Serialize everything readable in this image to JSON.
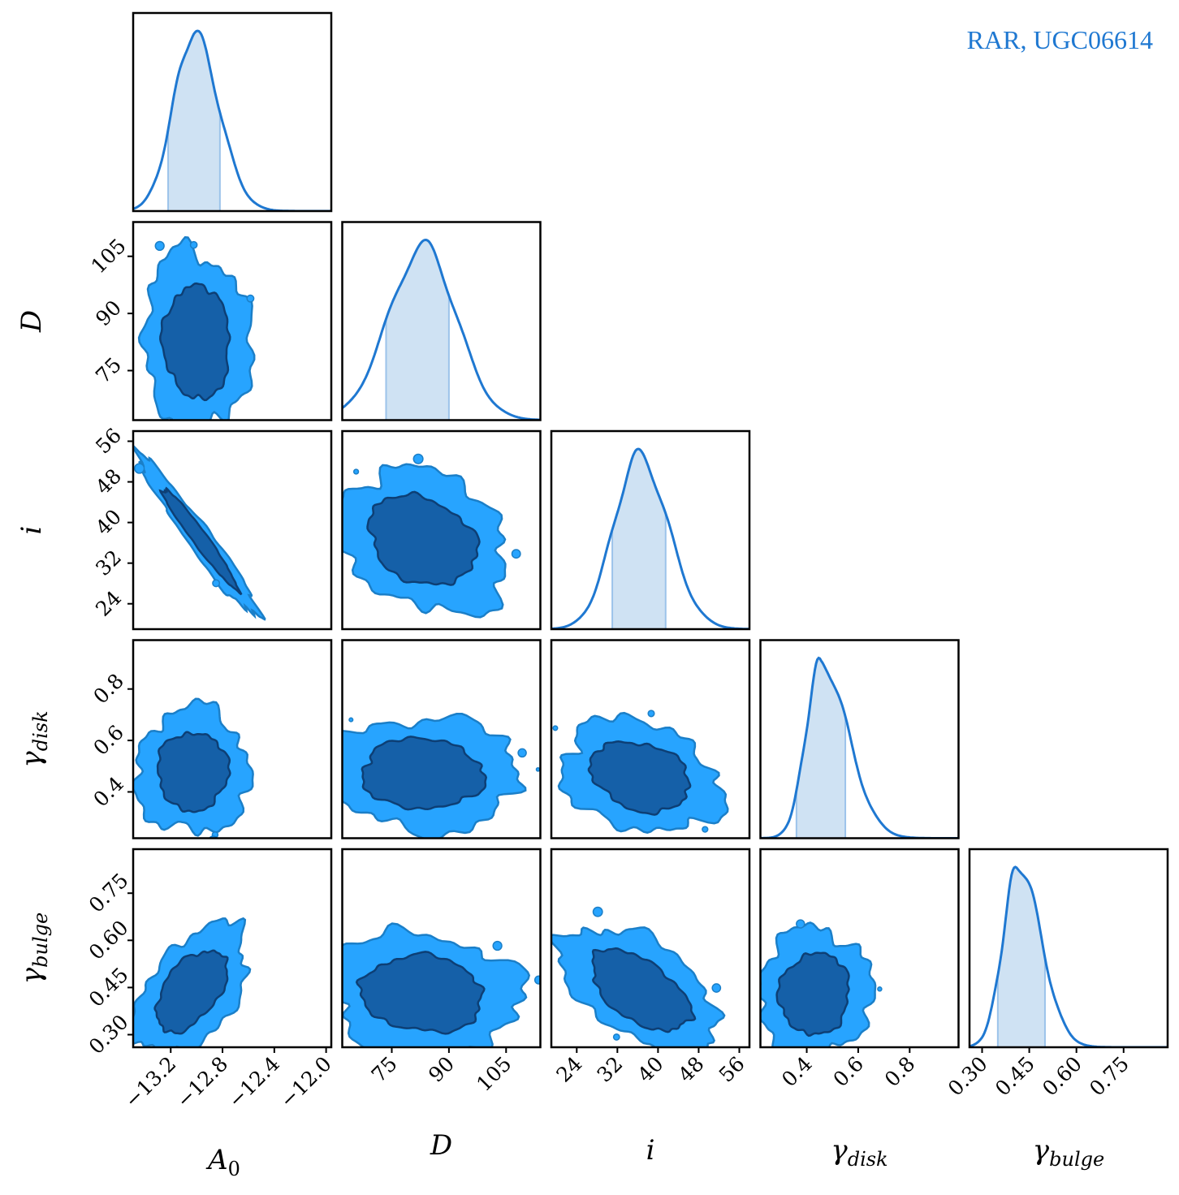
{
  "colors": {
    "line": "#1f78d1",
    "band_fill": "#cfe2f3",
    "band_edge": "#9cc3ea",
    "contour_outer_fill": "#27a4ff",
    "contour_outer_edge": "#1b7fc8",
    "contour_inner_fill": "#1560a8",
    "contour_inner_edge": "#0d3f75",
    "frame": "#000000"
  },
  "chart_data": {
    "type": "corner",
    "legend": "RAR, UGC06614",
    "parameters": [
      {
        "name": "A0",
        "label": "A0",
        "label_main": "A",
        "label_sub": "0",
        "label_sub_style": "upright",
        "range": [
          -13.49,
          -11.96
        ],
        "ticks": [
          -13.2,
          -12.8,
          -12.4,
          -12.0
        ],
        "tick_labels": [
          "−13.2",
          "−12.8",
          "−12.4",
          "−12.0"
        ],
        "mode": -13.02,
        "sd_left": 0.16,
        "sd_right": 0.19,
        "interval": [
          -13.22,
          -12.82
        ]
      },
      {
        "name": "D",
        "label": "D",
        "label_main": "D",
        "label_sub": "",
        "range": [
          62,
          114
        ],
        "ticks": [
          75,
          90,
          105
        ],
        "tick_labels": [
          "75",
          "90",
          "105"
        ],
        "mode": 83.4,
        "sd_left": 9.2,
        "sd_right": 8.6,
        "interval": [
          73.5,
          90.0
        ]
      },
      {
        "name": "i",
        "label": "i",
        "label_main": "i",
        "label_sub": "",
        "range": [
          19,
          58
        ],
        "ticks": [
          24,
          32,
          40,
          48,
          56
        ],
        "tick_labels": [
          "24",
          "32",
          "40",
          "48",
          "56"
        ],
        "mode": 36.3,
        "sd_left": 5.0,
        "sd_right": 5.7,
        "interval": [
          31.0,
          41.5
        ]
      },
      {
        "name": "gamma_disk",
        "label": "γdisk",
        "label_main": "γ",
        "label_sub": "disk",
        "label_sub_style": "italic",
        "range": [
          0.22,
          0.99
        ],
        "ticks": [
          0.4,
          0.6,
          0.8
        ],
        "tick_labels": [
          "0.4",
          "0.6",
          "0.8"
        ],
        "mode": 0.455,
        "sd_left": 0.058,
        "sd_right": 0.105,
        "interval": [
          0.36,
          0.55
        ]
      },
      {
        "name": "gamma_bulge",
        "label": "γbulge",
        "label_main": "γ",
        "label_sub": "bulge",
        "label_sub_style": "italic",
        "range": [
          0.26,
          0.89
        ],
        "ticks": [
          0.3,
          0.45,
          0.6,
          0.75
        ],
        "tick_labels": [
          "0.30",
          "0.45",
          "0.60",
          "0.75"
        ],
        "mode": 0.415,
        "sd_left": 0.048,
        "sd_right": 0.072,
        "interval": [
          0.35,
          0.5
        ]
      }
    ],
    "pairs": [
      {
        "x": "A0",
        "y": "D",
        "center": [
          -13.0,
          82.5
        ],
        "correlation": -0.05,
        "sigma": [
          0.17,
          9.8
        ]
      },
      {
        "x": "A0",
        "y": "i",
        "center": [
          -12.98,
          37.0
        ],
        "correlation": -0.97,
        "sigma": [
          0.19,
          6.5
        ]
      },
      {
        "x": "A0",
        "y": "gamma_disk",
        "center": [
          -13.03,
          0.48
        ],
        "correlation": 0.0,
        "sigma": [
          0.18,
          0.1
        ]
      },
      {
        "x": "A0",
        "y": "gamma_bulge",
        "center": [
          -13.04,
          0.44
        ],
        "correlation": 0.5,
        "sigma": [
          0.18,
          0.085
        ]
      },
      {
        "x": "D",
        "y": "i",
        "center": [
          83.0,
          36.5
        ],
        "correlation": -0.25,
        "sigma": [
          9.3,
          5.8
        ]
      },
      {
        "x": "D",
        "y": "gamma_disk",
        "center": [
          83.0,
          0.47
        ],
        "correlation": -0.05,
        "sigma": [
          10.5,
          0.09
        ]
      },
      {
        "x": "D",
        "y": "gamma_bulge",
        "center": [
          83.0,
          0.43
        ],
        "correlation": -0.1,
        "sigma": [
          10.5,
          0.08
        ]
      },
      {
        "x": "i",
        "y": "gamma_disk",
        "center": [
          36.5,
          0.46
        ],
        "correlation": -0.25,
        "sigma": [
          6.4,
          0.09
        ]
      },
      {
        "x": "i",
        "y": "gamma_bulge",
        "center": [
          36.5,
          0.44
        ],
        "correlation": -0.55,
        "sigma": [
          6.4,
          0.085
        ]
      },
      {
        "x": "gamma_disk",
        "y": "gamma_bulge",
        "center": [
          0.43,
          0.43
        ],
        "correlation": 0.05,
        "sigma": [
          0.09,
          0.085
        ]
      }
    ]
  }
}
